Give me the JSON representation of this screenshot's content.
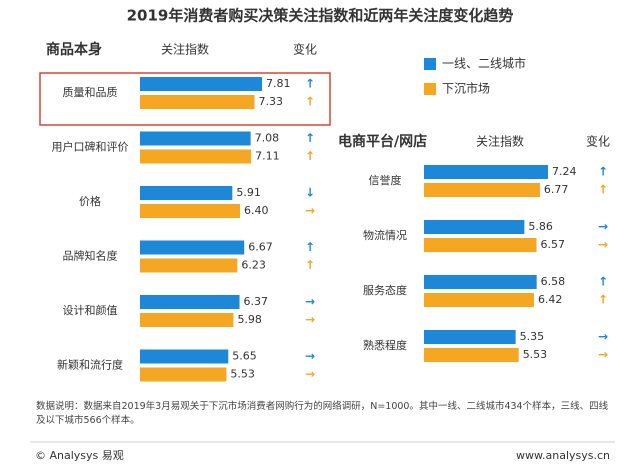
{
  "title": "2019年消费者购买决策关注指数和近两年关注度变化趋势",
  "legend": [
    {
      "name": "一线、二线城市",
      "color": "#1e88d8"
    },
    {
      "name": "下沉市场",
      "color": "#f5a623"
    }
  ],
  "chart_data": [
    {
      "type": "bar",
      "orientation": "horizontal",
      "header": "商品本身",
      "value_header": "关注指数",
      "change_header": "变化",
      "categories": [
        "质量和品质",
        "用户口碑和评价",
        "价格",
        "品牌知名度",
        "设计和颜值",
        "新颖和流行度"
      ],
      "xlim": [
        0,
        8
      ],
      "series": [
        {
          "values": [
            7.81,
            7.08,
            5.91,
            6.67,
            6.37,
            5.65
          ],
          "value_labels": [
            "7.81",
            "7.08",
            "5.91",
            "6.67",
            "6.37",
            "5.65"
          ],
          "changes": [
            "↑",
            "↑",
            "↓",
            "↑",
            "→",
            "→"
          ]
        },
        {
          "values": [
            7.33,
            7.11,
            6.4,
            6.23,
            5.98,
            5.53
          ],
          "value_labels": [
            "7.33",
            "7.11",
            "6.40",
            "6.23",
            "5.98",
            "5.53"
          ],
          "changes": [
            "↑",
            "↑",
            "→",
            "↑",
            "→",
            "→"
          ]
        }
      ]
    },
    {
      "type": "bar",
      "orientation": "horizontal",
      "header": "电商平台/网店",
      "value_header": "关注指数",
      "change_header": "变化",
      "categories": [
        "信誉度",
        "物流情况",
        "服务态度",
        "熟悉程度"
      ],
      "xlim": [
        0,
        8
      ],
      "series": [
        {
          "values": [
            7.24,
            5.86,
            6.58,
            5.35
          ],
          "value_labels": [
            "7.24",
            "5.86",
            "6.58",
            "5.35"
          ],
          "changes": [
            "↑",
            "→",
            "↑",
            "→"
          ]
        },
        {
          "values": [
            6.77,
            6.57,
            6.42,
            5.53
          ],
          "value_labels": [
            "6.77",
            "6.57",
            "6.42",
            "5.53"
          ],
          "changes": [
            "↑",
            "→",
            "↑",
            "→"
          ]
        }
      ]
    }
  ],
  "footnote": "数据说明：数据来自2019年3月易观关于下沉市场消费者网购行为的网络调研，N=1000。其中一线、二线城市434个样本，三线、四线及以下城市566个样本。",
  "footer": {
    "brand": "© Analysys 易观",
    "url": "www.analysys.cn"
  }
}
